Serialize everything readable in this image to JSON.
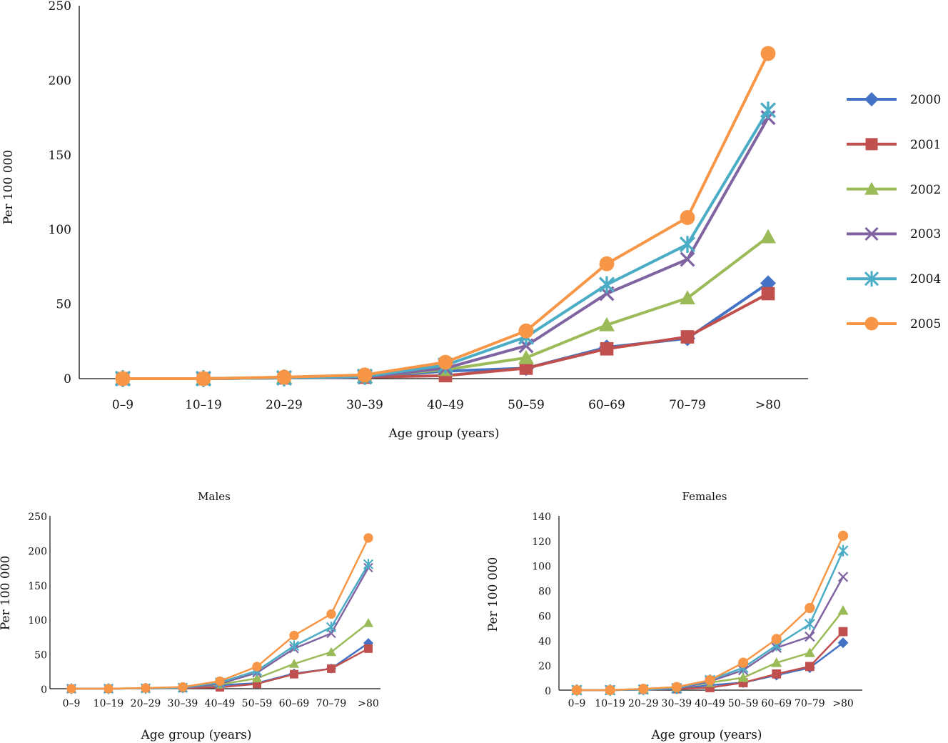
{
  "colors": {
    "2000": "#4472C4",
    "2001": "#C0504D",
    "2002": "#9BBB59",
    "2003": "#8064A2",
    "2004": "#4BACC6",
    "2005": "#F79646"
  },
  "markers": {
    "2000": "diamond",
    "2001": "square",
    "2002": "triangle",
    "2003": "x",
    "2004": "star",
    "2005": "circle"
  },
  "legend_placement": "right",
  "chart_data": [
    {
      "id": "overall",
      "type": "line",
      "title": "",
      "xlabel": "Age group (years)",
      "ylabel": "Per 100 000",
      "ylim": [
        0,
        250
      ],
      "yticks": [
        "0",
        "50",
        "100",
        "150",
        "200",
        "250"
      ],
      "categories": [
        "0–9",
        "10–19",
        "20–29",
        "30–39",
        "40–49",
        "50–59",
        "60–69",
        "70–79",
        ">80"
      ],
      "series": [
        {
          "name": "2000",
          "values": [
            0,
            0,
            0.5,
            1,
            5,
            7,
            21,
            27,
            64
          ]
        },
        {
          "name": "2001",
          "values": [
            0,
            0,
            0.5,
            1,
            2,
            7,
            20,
            28,
            57
          ]
        },
        {
          "name": "2002",
          "values": [
            0,
            0,
            1,
            1.5,
            6,
            14,
            36,
            54,
            95
          ]
        },
        {
          "name": "2003",
          "values": [
            0,
            0,
            0.5,
            1,
            7,
            22,
            57,
            80,
            175
          ]
        },
        {
          "name": "2004",
          "values": [
            0,
            0,
            0.5,
            1.5,
            9,
            28,
            63,
            90,
            180
          ]
        },
        {
          "name": "2005",
          "values": [
            0,
            0,
            1,
            2.5,
            11,
            32,
            77,
            108,
            218
          ]
        }
      ]
    },
    {
      "id": "males",
      "type": "line",
      "title": "Males",
      "xlabel": "Age group (years)",
      "ylabel": "Per 100 000",
      "ylim": [
        0,
        250
      ],
      "yticks": [
        "0",
        "50",
        "100",
        "150",
        "200",
        "250"
      ],
      "categories": [
        "0–9",
        "10–19",
        "20–29",
        "30–39",
        "40–49",
        "50–59",
        "60–69",
        "70–79",
        ">80"
      ],
      "series": [
        {
          "name": "2000",
          "values": [
            0,
            0,
            0.5,
            1,
            5,
            8,
            22,
            29,
            66
          ]
        },
        {
          "name": "2001",
          "values": [
            0,
            0,
            0.5,
            1,
            2,
            7,
            21,
            29,
            58
          ]
        },
        {
          "name": "2002",
          "values": [
            0,
            0,
            1,
            1.5,
            6,
            15,
            36,
            53,
            95
          ]
        },
        {
          "name": "2003",
          "values": [
            0,
            0,
            0.5,
            1,
            7,
            23,
            58,
            80,
            175
          ]
        },
        {
          "name": "2004",
          "values": [
            0,
            0,
            0.5,
            1.5,
            9,
            26,
            62,
            89,
            180
          ]
        },
        {
          "name": "2005",
          "values": [
            0,
            0,
            1,
            2.5,
            11,
            32,
            77,
            108,
            218
          ]
        }
      ]
    },
    {
      "id": "females",
      "type": "line",
      "title": "Females",
      "xlabel": "Age group (years)",
      "ylabel": "Per 100 000",
      "ylim": [
        0,
        140
      ],
      "yticks": [
        "0",
        "20",
        "40",
        "60",
        "80",
        "100",
        "120",
        "140"
      ],
      "categories": [
        "0–9",
        "10–19",
        "20–29",
        "30–39",
        "40–49",
        "50–59",
        "60–69",
        "70–79",
        ">80"
      ],
      "series": [
        {
          "name": "2000",
          "values": [
            0,
            0,
            0.5,
            1,
            4,
            6,
            12,
            18,
            38
          ]
        },
        {
          "name": "2001",
          "values": [
            0,
            0,
            0.5,
            1,
            2,
            6,
            13,
            19,
            47
          ]
        },
        {
          "name": "2002",
          "values": [
            0,
            0,
            1,
            1.5,
            6,
            10,
            22,
            30,
            64
          ]
        },
        {
          "name": "2003",
          "values": [
            0,
            0,
            0.5,
            1,
            7,
            16,
            34,
            43,
            91
          ]
        },
        {
          "name": "2004",
          "values": [
            0,
            0,
            0.5,
            1.5,
            8,
            18,
            36,
            53,
            112
          ]
        },
        {
          "name": "2005",
          "values": [
            0,
            0,
            1,
            2.5,
            8,
            22,
            41,
            66,
            124
          ]
        }
      ]
    }
  ]
}
